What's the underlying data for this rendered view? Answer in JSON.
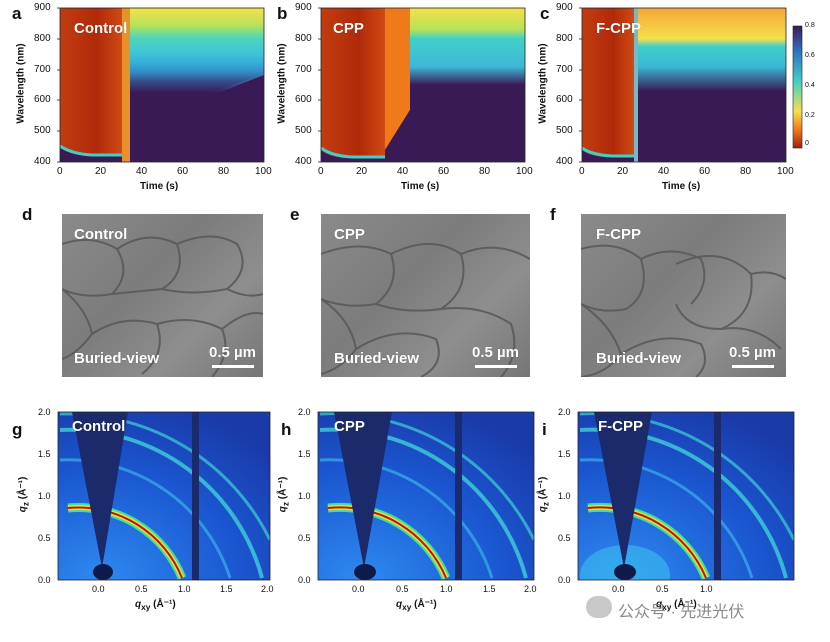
{
  "figure": {
    "row1": {
      "panels": [
        {
          "letter": "a",
          "label": "Control"
        },
        {
          "letter": "b",
          "label": "CPP"
        },
        {
          "letter": "c",
          "label": "F-CPP"
        }
      ],
      "ylabel": "Wavelength (nm)",
      "xlabel": "Time (s)",
      "yticks": [
        "900",
        "800",
        "700",
        "600",
        "500",
        "400"
      ],
      "xticks": [
        "0",
        "20",
        "40",
        "60",
        "80",
        "100"
      ],
      "colorbar_ticks": [
        "0.8",
        "0.6",
        "0.4",
        "0.2",
        "0"
      ],
      "colors": {
        "red": "#b02a0a",
        "orange": "#f07a1a",
        "yellow": "#f5e04a",
        "cyan": "#3fd0c8",
        "dark": "#3a1a55"
      }
    },
    "row2": {
      "panels": [
        {
          "letter": "d",
          "label": "Control",
          "view": "Buried-view",
          "scale": "0.5 µm"
        },
        {
          "letter": "e",
          "label": "CPP",
          "view": "Buried-view",
          "scale": "0.5 µm"
        },
        {
          "letter": "f",
          "label": "F-CPP",
          "view": "Buried-view",
          "scale": "0.5 µm"
        }
      ]
    },
    "row3": {
      "panels": [
        {
          "letter": "g",
          "label": "Control"
        },
        {
          "letter": "h",
          "label": "CPP"
        },
        {
          "letter": "i",
          "label": "F-CPP"
        }
      ],
      "ylabel_main": "q",
      "ylabel_sub": "z",
      "ylabel_unit": " (Å⁻¹)",
      "xlabel_main": "q",
      "xlabel_sub": "xy",
      "xlabel_unit": " (Å⁻¹)",
      "yticks": [
        "2.0",
        "1.5",
        "1.0",
        "0.5",
        "0.0"
      ],
      "xticks": [
        "0.0",
        "0.5",
        "1.0",
        "1.5",
        "2.0"
      ]
    },
    "watermark": "公众号 · 先进光伏"
  }
}
